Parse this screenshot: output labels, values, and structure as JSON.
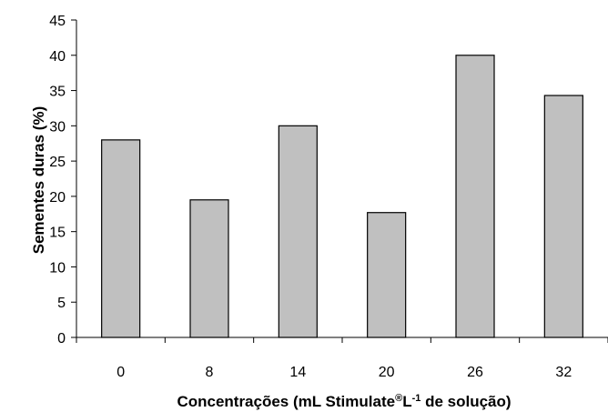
{
  "chart_data": {
    "type": "bar",
    "categories": [
      "0",
      "8",
      "14",
      "20",
      "26",
      "32"
    ],
    "values": [
      28,
      19.5,
      30,
      17.7,
      40,
      34.3
    ],
    "ylabel": "Sementes duras (%)",
    "xlabel": {
      "pre": "Concentrações (mL Stimulate",
      "reg": "®",
      "mid": "L",
      "sup": "-1",
      "post": " de solução)"
    },
    "ylim": [
      0,
      45
    ],
    "yticks": [
      "0",
      "5",
      "10",
      "15",
      "20",
      "25",
      "30",
      "35",
      "40",
      "45"
    ],
    "grid": false,
    "colors": {
      "bar_fill": "#c0c0c0",
      "bar_stroke": "#000000",
      "axis": "#000000"
    }
  }
}
